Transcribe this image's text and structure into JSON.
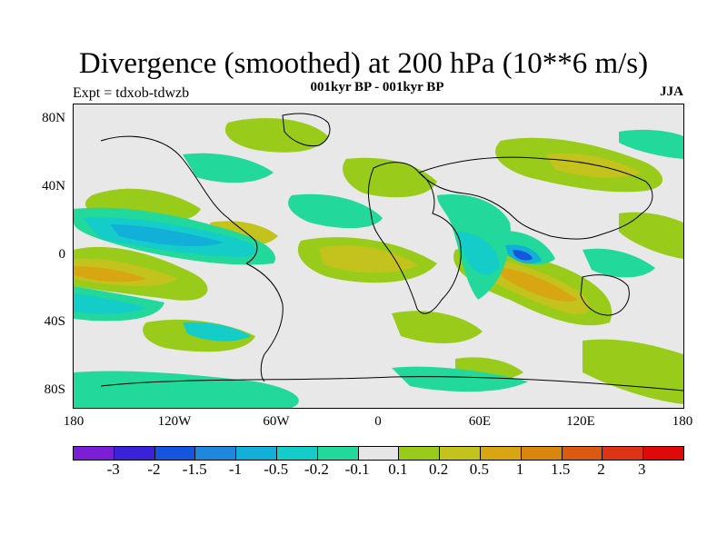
{
  "title": "Divergence (smoothed) at 200 hPa (10**6 m/s)",
  "subtitle": "001kyr BP - 001kyr BP",
  "experiment": "Expt = tdxob-tdwzb",
  "season": "JJA",
  "lat_labels": [
    "80N",
    "40N",
    "0",
    "40S",
    "80S"
  ],
  "lon_labels": [
    "180",
    "120W",
    "60W",
    "0",
    "60E",
    "120E",
    "180"
  ],
  "colorbar": {
    "colors": [
      "#7a1fd6",
      "#3a22d8",
      "#1655dd",
      "#1e88dd",
      "#12b0d8",
      "#14ccc8",
      "#22d89a",
      "#e6e6e6",
      "#99cc1a",
      "#c4c21c",
      "#d8a612",
      "#d8860e",
      "#da5a12",
      "#dc3414",
      "#de0a0a"
    ],
    "labels": [
      "-3",
      "-2",
      "-1.5",
      "-1",
      "-0.5",
      "-0.2",
      "-0.1",
      "0.1",
      "0.2",
      "0.5",
      "1",
      "1.5",
      "2",
      "3"
    ]
  }
}
